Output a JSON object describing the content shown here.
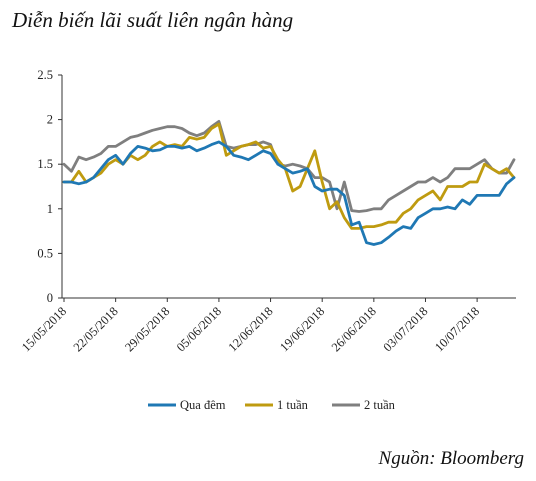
{
  "title": "Diễn biến lãi suất liên ngân hàng",
  "source": "Nguồn: Bloomberg",
  "chart_data": {
    "type": "line",
    "title": "Diễn biến lãi suất liên ngân hàng",
    "xlabel": "",
    "ylabel": "",
    "ylim": [
      0,
      2.5
    ],
    "yticks": [
      "0",
      "0.5",
      "1",
      "1.5",
      "2",
      "2.5"
    ],
    "grid": false,
    "legend_position": "bottom",
    "x_tick_labels": [
      "15/05/2018",
      "22/05/2018",
      "29/05/2018",
      "05/06/2018",
      "12/06/2018",
      "19/06/2018",
      "26/06/2018",
      "03/07/2018",
      "10/07/2018"
    ],
    "x_tick_index": [
      0,
      7,
      14,
      21,
      28,
      35,
      42,
      49,
      56
    ],
    "x": [
      "15/05/2018",
      "16/05/2018",
      "17/05/2018",
      "18/05/2018",
      "19/05/2018",
      "20/05/2018",
      "21/05/2018",
      "22/05/2018",
      "23/05/2018",
      "24/05/2018",
      "25/05/2018",
      "26/05/2018",
      "27/05/2018",
      "28/05/2018",
      "29/05/2018",
      "30/05/2018",
      "31/05/2018",
      "01/06/2018",
      "02/06/2018",
      "03/06/2018",
      "04/06/2018",
      "05/06/2018",
      "06/06/2018",
      "07/06/2018",
      "08/06/2018",
      "09/06/2018",
      "10/06/2018",
      "11/06/2018",
      "12/06/2018",
      "13/06/2018",
      "14/06/2018",
      "15/06/2018",
      "16/06/2018",
      "17/06/2018",
      "18/06/2018",
      "19/06/2018",
      "20/06/2018",
      "21/06/2018",
      "22/06/2018",
      "23/06/2018",
      "24/06/2018",
      "25/06/2018",
      "26/06/2018",
      "27/06/2018",
      "28/06/2018",
      "29/06/2018",
      "30/06/2018",
      "01/07/2018",
      "02/07/2018",
      "03/07/2018",
      "04/07/2018",
      "05/07/2018",
      "06/07/2018",
      "07/07/2018",
      "08/07/2018",
      "09/07/2018",
      "10/07/2018",
      "11/07/2018",
      "12/07/2018",
      "13/07/2018",
      "14/07/2018",
      "15/07/2018"
    ],
    "series": [
      {
        "name": "Qua đêm",
        "color": "#1f78b4",
        "values": [
          1.3,
          1.3,
          1.28,
          1.3,
          1.35,
          1.45,
          1.55,
          1.6,
          1.5,
          1.62,
          1.7,
          1.68,
          1.65,
          1.66,
          1.7,
          1.7,
          1.68,
          1.7,
          1.65,
          1.68,
          1.72,
          1.75,
          1.7,
          1.6,
          1.58,
          1.55,
          1.6,
          1.65,
          1.62,
          1.5,
          1.45,
          1.4,
          1.42,
          1.45,
          1.25,
          1.2,
          1.22,
          1.22,
          1.15,
          0.82,
          0.85,
          0.62,
          0.6,
          0.62,
          0.68,
          0.75,
          0.8,
          0.78,
          0.9,
          0.95,
          1.0,
          1.0,
          1.02,
          1.0,
          1.1,
          1.05,
          1.15,
          1.15,
          1.15,
          1.15,
          1.28,
          1.35
        ]
      },
      {
        "name": "1 tuần",
        "color": "#bf9b10",
        "values": [
          1.3,
          1.3,
          1.42,
          1.3,
          1.35,
          1.4,
          1.5,
          1.55,
          1.5,
          1.6,
          1.55,
          1.6,
          1.7,
          1.75,
          1.7,
          1.72,
          1.7,
          1.8,
          1.78,
          1.8,
          1.9,
          1.95,
          1.6,
          1.65,
          1.7,
          1.72,
          1.75,
          1.68,
          1.7,
          1.55,
          1.45,
          1.2,
          1.25,
          1.45,
          1.65,
          1.3,
          1.0,
          1.08,
          0.9,
          0.78,
          0.78,
          0.8,
          0.8,
          0.82,
          0.85,
          0.85,
          0.95,
          1.0,
          1.1,
          1.15,
          1.2,
          1.1,
          1.25,
          1.25,
          1.25,
          1.3,
          1.3,
          1.5,
          1.45,
          1.4,
          1.45,
          1.35
        ]
      },
      {
        "name": "2 tuần",
        "color": "#7f7f7f",
        "values": [
          1.5,
          1.42,
          1.58,
          1.55,
          1.58,
          1.62,
          1.7,
          1.7,
          1.75,
          1.8,
          1.82,
          1.85,
          1.88,
          1.9,
          1.92,
          1.92,
          1.9,
          1.85,
          1.82,
          1.85,
          1.92,
          1.98,
          1.7,
          1.68,
          1.7,
          1.72,
          1.72,
          1.75,
          1.72,
          1.5,
          1.48,
          1.5,
          1.48,
          1.45,
          1.35,
          1.35,
          1.3,
          1.0,
          1.3,
          0.98,
          0.97,
          0.98,
          1.0,
          1.0,
          1.1,
          1.15,
          1.2,
          1.25,
          1.3,
          1.3,
          1.35,
          1.3,
          1.35,
          1.45,
          1.45,
          1.45,
          1.5,
          1.55,
          1.45,
          1.4,
          1.4,
          1.55
        ]
      }
    ]
  }
}
